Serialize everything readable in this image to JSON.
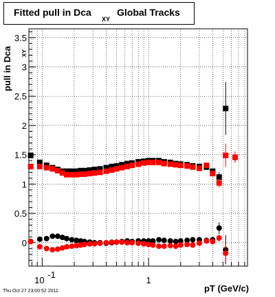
{
  "chart_data": {
    "type": "scatter",
    "title": "Fitted pull in Dca",
    "title_subscript": "XY",
    "title_suffix": "Global Tracks",
    "ylabel": "pull in Dca",
    "ylabel_subscript": "XY",
    "xlabel": "pT (GeV/c)",
    "x_scale": "log",
    "xlim": [
      0.075,
      8.5
    ],
    "ylim": [
      -0.4,
      3.65
    ],
    "grid": true,
    "y_ticks": [
      "0",
      "0.5",
      "1",
      "1.5",
      "2",
      "2.5",
      "3",
      "3.5"
    ],
    "x_ticks": [
      "10",
      "-1",
      "1"
    ],
    "colors": {
      "black": "#000000",
      "red": "#ff0000"
    },
    "series": [
      {
        "marker": "square",
        "color": "#000000",
        "x": [
          0.078,
          0.095,
          0.11,
          0.125,
          0.14,
          0.155,
          0.17,
          0.19,
          0.21,
          0.23,
          0.25,
          0.28,
          0.31,
          0.35,
          0.4,
          0.45,
          0.5,
          0.56,
          0.63,
          0.7,
          0.8,
          0.9,
          1.0,
          1.1,
          1.25,
          1.4,
          1.6,
          1.8,
          2.0,
          2.3,
          2.6,
          3.0,
          3.5,
          4.0,
          4.6,
          5.3
        ],
        "y": [
          1.49,
          1.37,
          1.32,
          1.28,
          1.25,
          1.22,
          1.22,
          1.22,
          1.22,
          1.23,
          1.23,
          1.24,
          1.25,
          1.26,
          1.28,
          1.3,
          1.31,
          1.33,
          1.35,
          1.36,
          1.38,
          1.39,
          1.4,
          1.4,
          1.4,
          1.38,
          1.37,
          1.35,
          1.34,
          1.33,
          1.31,
          1.3,
          1.29,
          1.22,
          1.12,
          2.29
        ],
        "yerr": [
          0.02,
          0.02,
          0.01,
          0.01,
          0.01,
          0.01,
          0.01,
          0.01,
          0.01,
          0.01,
          0.01,
          0.01,
          0.01,
          0.01,
          0.01,
          0.01,
          0.01,
          0.01,
          0.01,
          0.01,
          0.01,
          0.01,
          0.01,
          0.01,
          0.01,
          0.01,
          0.01,
          0.01,
          0.01,
          0.01,
          0.02,
          0.02,
          0.03,
          0.05,
          0.08,
          0.45
        ]
      },
      {
        "marker": "square",
        "color": "#ff0000",
        "x": [
          0.078,
          0.095,
          0.11,
          0.125,
          0.14,
          0.155,
          0.17,
          0.19,
          0.21,
          0.23,
          0.25,
          0.28,
          0.31,
          0.35,
          0.4,
          0.45,
          0.5,
          0.56,
          0.63,
          0.7,
          0.8,
          0.9,
          1.0,
          1.1,
          1.25,
          1.4,
          1.6,
          1.8,
          2.0,
          2.3,
          2.6,
          3.0,
          3.5,
          4.0,
          4.6,
          5.3,
          6.5
        ],
        "y": [
          1.3,
          1.3,
          1.28,
          1.26,
          1.23,
          1.19,
          1.16,
          1.16,
          1.16,
          1.17,
          1.17,
          1.18,
          1.19,
          1.2,
          1.22,
          1.24,
          1.26,
          1.28,
          1.3,
          1.32,
          1.34,
          1.36,
          1.37,
          1.37,
          1.37,
          1.35,
          1.34,
          1.33,
          1.32,
          1.31,
          1.29,
          1.27,
          1.32,
          1.18,
          1.02,
          1.49,
          1.46
        ],
        "yerr": [
          0.02,
          0.02,
          0.01,
          0.01,
          0.01,
          0.01,
          0.01,
          0.01,
          0.01,
          0.01,
          0.01,
          0.01,
          0.01,
          0.01,
          0.01,
          0.01,
          0.01,
          0.01,
          0.01,
          0.01,
          0.01,
          0.01,
          0.01,
          0.01,
          0.01,
          0.01,
          0.01,
          0.01,
          0.01,
          0.01,
          0.02,
          0.02,
          0.03,
          0.05,
          0.08,
          0.2,
          0.1
        ]
      },
      {
        "marker": "circle",
        "color": "#000000",
        "x": [
          0.078,
          0.095,
          0.11,
          0.125,
          0.14,
          0.155,
          0.17,
          0.19,
          0.21,
          0.23,
          0.25,
          0.28,
          0.31,
          0.35,
          0.4,
          0.45,
          0.5,
          0.56,
          0.63,
          0.7,
          0.8,
          0.9,
          1.0,
          1.1,
          1.25,
          1.4,
          1.6,
          1.8,
          2.0,
          2.3,
          2.6,
          3.0,
          3.5,
          4.0,
          4.6,
          5.3
        ],
        "y": [
          0.02,
          0.06,
          0.07,
          0.11,
          0.11,
          0.09,
          0.07,
          0.05,
          0.04,
          0.03,
          0.02,
          0.01,
          0.0,
          0.0,
          -0.01,
          0.0,
          0.01,
          0.02,
          0.03,
          0.02,
          0.03,
          0.03,
          0.03,
          0.03,
          0.05,
          0.04,
          0.03,
          0.02,
          0.03,
          0.04,
          0.05,
          0.05,
          0.04,
          0.05,
          0.25,
          -0.12
        ],
        "yerr": [
          0.01,
          0.01,
          0.01,
          0.01,
          0.01,
          0.01,
          0.01,
          0.01,
          0.01,
          0.01,
          0.01,
          0.01,
          0.01,
          0.01,
          0.01,
          0.01,
          0.01,
          0.01,
          0.01,
          0.01,
          0.01,
          0.01,
          0.01,
          0.01,
          0.01,
          0.01,
          0.01,
          0.01,
          0.01,
          0.01,
          0.01,
          0.02,
          0.02,
          0.03,
          0.1,
          0.25
        ]
      },
      {
        "marker": "circle",
        "color": "#ff0000",
        "x": [
          0.078,
          0.095,
          0.11,
          0.125,
          0.14,
          0.155,
          0.17,
          0.19,
          0.21,
          0.23,
          0.25,
          0.28,
          0.31,
          0.35,
          0.4,
          0.45,
          0.5,
          0.56,
          0.63,
          0.7,
          0.8,
          0.9,
          1.0,
          1.1,
          1.25,
          1.4,
          1.6,
          1.8,
          2.0,
          2.3,
          2.6,
          3.0,
          3.5,
          4.0,
          4.6,
          5.3,
          6.5
        ],
        "y": [
          0.02,
          -0.07,
          -0.1,
          -0.12,
          -0.11,
          -0.09,
          -0.07,
          -0.06,
          -0.05,
          -0.04,
          -0.03,
          -0.02,
          -0.02,
          -0.01,
          0.0,
          0.01,
          0.01,
          0.01,
          0.0,
          0.0,
          -0.01,
          -0.02,
          -0.03,
          -0.04,
          -0.06,
          -0.06,
          -0.05,
          -0.06,
          -0.04,
          -0.03,
          -0.04,
          -0.01,
          0.03,
          0.02,
          0.08,
          -0.18,
          1.45
        ],
        "yerr": [
          0.01,
          0.01,
          0.01,
          0.01,
          0.01,
          0.01,
          0.01,
          0.01,
          0.01,
          0.01,
          0.01,
          0.01,
          0.01,
          0.01,
          0.01,
          0.01,
          0.01,
          0.01,
          0.01,
          0.01,
          0.01,
          0.01,
          0.01,
          0.01,
          0.01,
          0.01,
          0.01,
          0.01,
          0.01,
          0.01,
          0.01,
          0.02,
          0.02,
          0.03,
          0.06,
          0.15,
          0.05
        ]
      }
    ]
  },
  "footer": "Thu Oct 27 23:00:52 2011"
}
